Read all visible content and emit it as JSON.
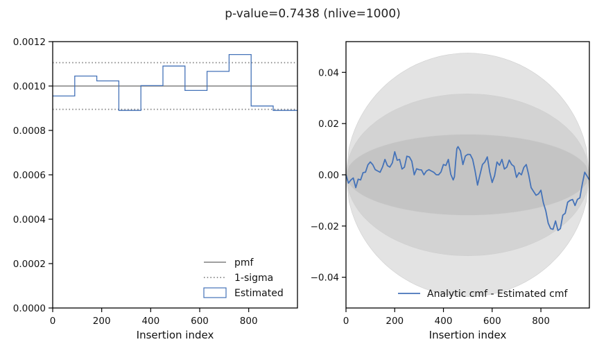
{
  "figure": {
    "title": "p-value=0.7438 (nlive=1000)"
  },
  "colors": {
    "estimated": "#4472b8",
    "pmf": "#808080",
    "sigma": "#808080",
    "band_outer": "#e3e3e3",
    "band_mid": "#d3d3d3",
    "band_inner": "#c4c4c4"
  },
  "chart_data": [
    {
      "type": "line",
      "xlabel": "Insertion index",
      "ylabel": "",
      "xlim": [
        0,
        999
      ],
      "ylim": [
        0,
        0.0012
      ],
      "x_ticks": [
        0,
        200,
        400,
        600,
        800
      ],
      "x_tick_labels": [
        "0",
        "200",
        "400",
        "600",
        "800"
      ],
      "y_ticks": [
        0,
        0.0002,
        0.0004,
        0.0006,
        0.0008,
        0.001,
        0.0012
      ],
      "y_tick_labels": [
        "0.0000",
        "0.0002",
        "0.0004",
        "0.0006",
        "0.0008",
        "0.0010",
        "0.0012"
      ],
      "legend_position": "lower-right",
      "legend": [
        {
          "label": "pmf",
          "style": "solid"
        },
        {
          "label": "1-sigma",
          "style": "dotted"
        },
        {
          "label": "Estimated",
          "style": "step"
        }
      ],
      "pmf": 0.001,
      "one_sigma": [
        0.000895,
        0.001105
      ],
      "estimated": {
        "bin_edges": [
          0,
          90,
          180,
          270,
          360,
          450,
          540,
          630,
          720,
          810,
          900,
          999
        ],
        "values": [
          0.000955,
          0.001045,
          0.001023,
          0.00089,
          0.001002,
          0.00109,
          0.00098,
          0.001066,
          0.001142,
          0.00091,
          0.00089
        ]
      }
    },
    {
      "type": "line",
      "xlabel": "Insertion index",
      "ylabel": "",
      "xlim": [
        0,
        999
      ],
      "ylim": [
        -0.052,
        0.052
      ],
      "x_ticks": [
        0,
        200,
        400,
        600,
        800
      ],
      "x_tick_labels": [
        "0",
        "200",
        "400",
        "600",
        "800"
      ],
      "y_ticks": [
        -0.04,
        -0.02,
        0,
        0.02,
        0.04
      ],
      "y_tick_labels": [
        "−0.04",
        "−0.02",
        "0.00",
        "0.02",
        "0.04"
      ],
      "legend_position": "lower-right",
      "legend": [
        {
          "label": "Analytic cmf - Estimated cmf",
          "style": "solid"
        }
      ],
      "bands": [
        {
          "sigma": 3,
          "max_halfwidth": 0.0475
        },
        {
          "sigma": 2,
          "max_halfwidth": 0.0316
        },
        {
          "sigma": 1,
          "max_halfwidth": 0.0158
        }
      ],
      "difference": {
        "x": [
          0,
          20,
          40,
          60,
          80,
          100,
          120,
          140,
          160,
          180,
          200,
          220,
          240,
          260,
          280,
          300,
          320,
          340,
          360,
          380,
          400,
          420,
          440,
          450,
          460,
          480,
          500,
          520,
          540,
          560,
          580,
          600,
          620,
          640,
          660,
          680,
          700,
          720,
          740,
          760,
          780,
          800,
          820,
          840,
          860,
          880,
          900,
          920,
          940,
          960,
          980,
          999
        ],
        "y": [
          0.0,
          -0.002,
          -0.005,
          -0.002,
          0.001,
          0.005,
          0.002,
          0.001,
          0.006,
          0.003,
          0.009,
          0.006,
          0.003,
          0.007,
          0.0,
          0.002,
          0.0,
          0.002,
          0.001,
          0.0,
          0.004,
          0.006,
          -0.002,
          0.005,
          0.011,
          0.004,
          0.008,
          0.006,
          -0.004,
          0.004,
          0.007,
          -0.003,
          0.005,
          0.006,
          0.003,
          0.004,
          -0.001,
          0.0,
          0.004,
          -0.005,
          -0.008,
          -0.006,
          -0.014,
          -0.021,
          -0.018,
          -0.021,
          -0.015,
          -0.01,
          -0.012,
          -0.009,
          0.001,
          -0.002
        ]
      }
    }
  ]
}
